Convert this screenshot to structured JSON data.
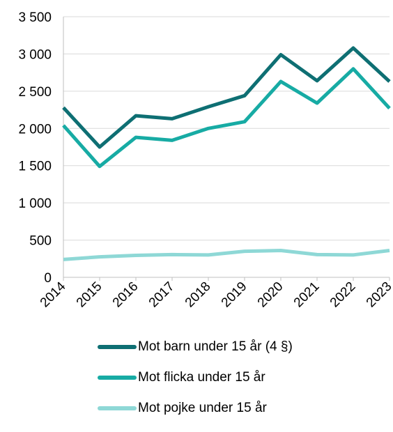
{
  "chart_data": {
    "type": "line",
    "categories": [
      "2014",
      "2015",
      "2016",
      "2017",
      "2018",
      "2019",
      "2020",
      "2021",
      "2022",
      "2023"
    ],
    "series": [
      {
        "name": "Mot barn under 15 år (4 §)",
        "color": "#0e6f73",
        "values": [
          2280,
          1750,
          2170,
          2130,
          2290,
          2440,
          2990,
          2640,
          3080,
          2630
        ]
      },
      {
        "name": "Mot flicka under 15 år",
        "color": "#17aba4",
        "values": [
          2040,
          1490,
          1880,
          1840,
          2000,
          2090,
          2630,
          2340,
          2800,
          2270
        ]
      },
      {
        "name": "Mot pojke under 15 år",
        "color": "#8ed8d6",
        "values": [
          240,
          275,
          295,
          305,
          300,
          350,
          360,
          305,
          300,
          360
        ]
      }
    ],
    "y_ticks": [
      "0",
      "500",
      "1 000",
      "1 500",
      "2 000",
      "2 500",
      "3 000",
      "3 500"
    ],
    "y_tick_values": [
      0,
      500,
      1000,
      1500,
      2000,
      2500,
      3000,
      3500
    ],
    "ylim": [
      0,
      3500
    ],
    "grid": true,
    "legend_position": "bottom"
  }
}
